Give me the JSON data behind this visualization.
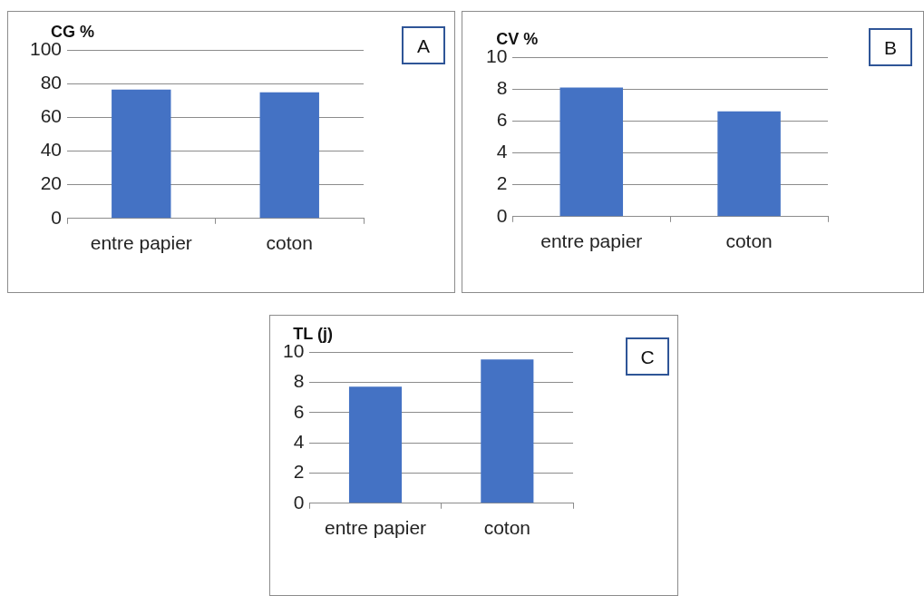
{
  "chart_data": [
    {
      "type": "bar",
      "ylabel": "CG %",
      "categories": [
        "entre papier",
        "coton"
      ],
      "values": [
        76.4,
        74.9
      ],
      "color": "#4472c4",
      "ylim": [
        0,
        100
      ],
      "yticks": [
        0,
        20,
        40,
        60,
        80,
        100
      ],
      "grid": "y",
      "legend": false,
      "annotations": [
        "A"
      ]
    },
    {
      "type": "bar",
      "ylabel": "CV %",
      "categories": [
        "entre papier",
        "coton"
      ],
      "values": [
        8.1,
        6.6
      ],
      "color": "#4472c4",
      "ylim": [
        0,
        10
      ],
      "yticks": [
        0,
        2,
        4,
        6,
        8,
        10
      ],
      "grid": "y",
      "legend": false,
      "annotations": [
        "B"
      ]
    },
    {
      "type": "bar",
      "ylabel": "TL (j)",
      "categories": [
        "entre papier",
        "coton"
      ],
      "values": [
        7.7,
        9.5
      ],
      "color": "#4472c4",
      "ylim": [
        0,
        10
      ],
      "yticks": [
        0,
        2,
        4,
        6,
        8,
        10
      ],
      "grid": "y",
      "legend": false,
      "annotations": [
        "C"
      ]
    }
  ]
}
